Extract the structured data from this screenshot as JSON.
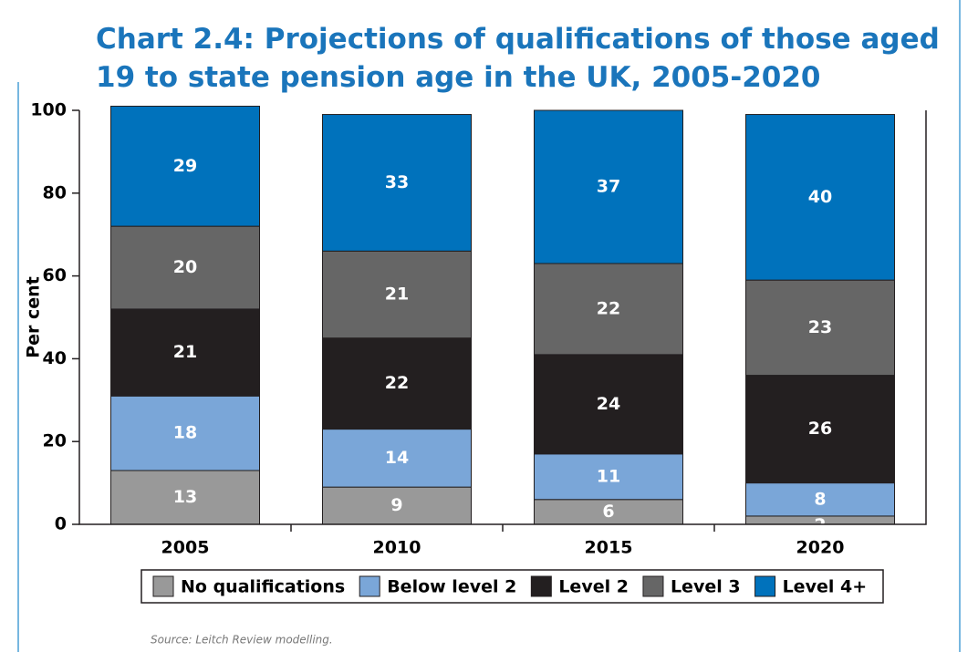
{
  "chart_data": {
    "type": "stacked_bar",
    "title": "Chart 2.4: Projections of qualifications of those aged 19 to state pension age in the UK, 2005-2020",
    "y_label": "Per cent",
    "source": "Source: Leitch Review modelling.",
    "categories": [
      "2005",
      "2010",
      "2015",
      "2020"
    ],
    "series": [
      {
        "name": "No qualifications",
        "color": "#999999",
        "values": [
          13,
          9,
          6,
          2
        ]
      },
      {
        "name": "Below level 2",
        "color": "#7aa6d8",
        "values": [
          18,
          14,
          11,
          8
        ]
      },
      {
        "name": "Level 2",
        "color": "#231f20",
        "values": [
          21,
          22,
          24,
          26
        ]
      },
      {
        "name": "Level 3",
        "color": "#666666",
        "values": [
          20,
          21,
          22,
          23
        ]
      },
      {
        "name": "Level 4+",
        "color": "#0072bc",
        "values": [
          29,
          33,
          37,
          40
        ]
      }
    ],
    "ylim": [
      0,
      100
    ],
    "yticks": [
      0,
      20,
      40,
      60,
      80,
      100
    ],
    "legend": "bottom"
  }
}
